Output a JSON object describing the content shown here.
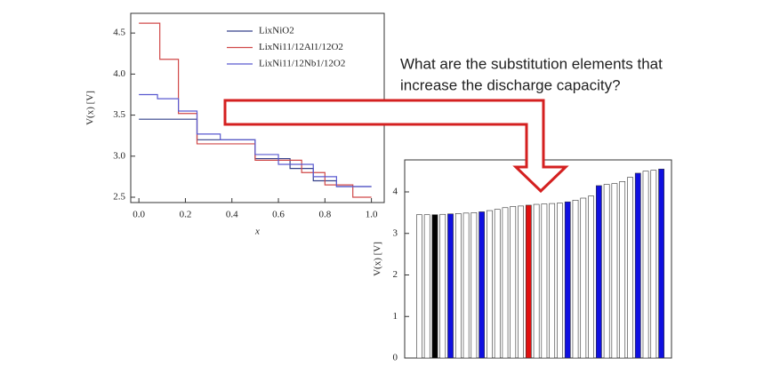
{
  "annotation": [
    "What are the substitution elements that",
    "increase the discharge capacity?"
  ],
  "chart_data": [
    {
      "type": "step",
      "xlabel": "x",
      "ylabel": "V(x) [V]",
      "xlim": [
        -0.035,
        1.055
      ],
      "ylim": [
        2.435,
        4.74
      ],
      "xticks": [
        {
          "value": 0,
          "label": "0.0"
        },
        0.2,
        0.4,
        0.6,
        0.8,
        {
          "value": 1,
          "label": "1.0"
        }
      ],
      "yticks": [
        2.5,
        {
          "value": 3,
          "label": "3.0"
        },
        3.5,
        {
          "value": 4,
          "label": "4.0"
        },
        4.5
      ],
      "legend": "upper right",
      "series": [
        {
          "name": "LixNiO2",
          "color": "#34408a",
          "x": [
            0,
            0.25,
            0.5,
            0.65,
            0.75,
            0.85,
            1.0
          ],
          "values": [
            3.45,
            3.2,
            2.97,
            2.85,
            2.7,
            2.63,
            2.63
          ]
        },
        {
          "name": "LixNi11/12Al1/12O2",
          "color": "#d04848",
          "x": [
            0,
            0.09,
            0.17,
            0.25,
            0.5,
            0.7,
            0.8,
            0.92,
            1.0
          ],
          "values": [
            4.62,
            4.18,
            3.52,
            3.15,
            2.95,
            2.8,
            2.65,
            2.5,
            2.5
          ]
        },
        {
          "name": "LixNi11/12Nb1/12O2",
          "color": "#5a5ad0",
          "x": [
            0,
            0.08,
            0.17,
            0.25,
            0.35,
            0.5,
            0.6,
            0.75,
            0.85,
            1.0
          ],
          "values": [
            3.75,
            3.7,
            3.55,
            3.27,
            3.2,
            3.02,
            2.9,
            2.75,
            2.63,
            2.63
          ]
        }
      ]
    },
    {
      "type": "bar",
      "ylabel": "V(x) [V]",
      "ylim": [
        0,
        4.77
      ],
      "yticks": [
        0,
        1,
        2,
        3,
        4
      ],
      "categories": [
        null,
        null,
        null,
        null,
        null,
        null,
        null,
        null,
        null,
        null,
        null,
        null,
        null,
        null,
        null,
        null,
        null,
        null,
        null,
        null,
        null,
        null,
        null,
        null,
        null,
        null,
        null,
        null,
        null,
        null,
        null,
        null
      ],
      "values": [
        3.45,
        3.45,
        3.45,
        3.46,
        3.47,
        3.48,
        3.49,
        3.5,
        3.52,
        3.55,
        3.58,
        3.62,
        3.65,
        3.66,
        3.68,
        3.7,
        3.71,
        3.72,
        3.73,
        3.76,
        3.8,
        3.85,
        3.9,
        4.15,
        4.18,
        4.2,
        4.25,
        4.35,
        4.45,
        4.5,
        4.52,
        4.55
      ],
      "colors": [
        "#ffffff",
        "#ffffff",
        "#000000",
        "#ffffff",
        "#1010e0",
        "#ffffff",
        "#ffffff",
        "#ffffff",
        "#1010e0",
        "#ffffff",
        "#ffffff",
        "#ffffff",
        "#ffffff",
        "#ffffff",
        "#e01010",
        "#ffffff",
        "#ffffff",
        "#ffffff",
        "#ffffff",
        "#1010e0",
        "#ffffff",
        "#ffffff",
        "#ffffff",
        "#1010e0",
        "#ffffff",
        "#ffffff",
        "#ffffff",
        "#ffffff",
        "#1010e0",
        "#ffffff",
        "#ffffff",
        "#1010e0"
      ]
    }
  ]
}
